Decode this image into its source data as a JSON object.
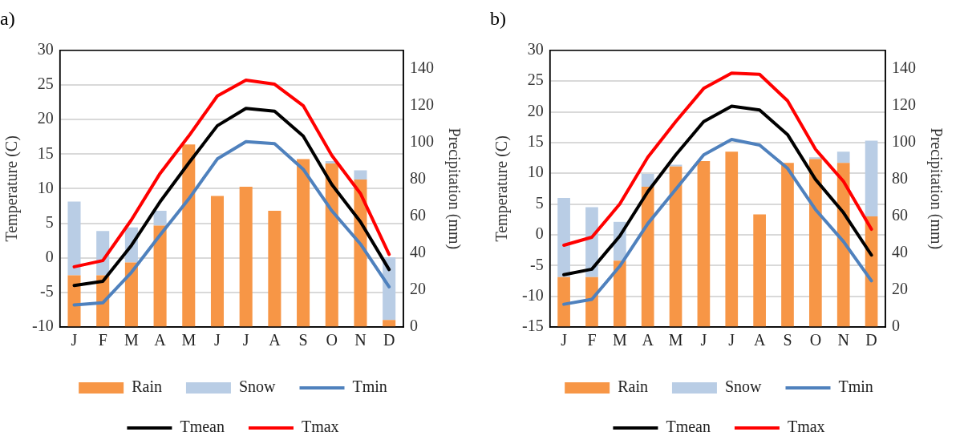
{
  "chart_data": [
    {
      "type": "bar",
      "title": "a)",
      "ylabel": "Temperature (C)",
      "y2label": "Precipitation (mm)",
      "categories": [
        "J",
        "F",
        "M",
        "A",
        "M",
        "J",
        "J",
        "A",
        "S",
        "O",
        "N",
        "D"
      ],
      "stacked": true,
      "grid": "y",
      "legend": "bottom",
      "marker": "none",
      "ylim": [
        -10,
        30
      ],
      "yticks": [
        -10,
        -5,
        0,
        5,
        10,
        15,
        20,
        25,
        30
      ],
      "y2lim": [
        0,
        150
      ],
      "y2ticks": [
        0,
        20,
        40,
        60,
        80,
        100,
        120,
        140
      ],
      "series": [
        {
          "name": "Rain",
          "axis": "y2",
          "color": "#f79646",
          "values": [
            28,
            28,
            35,
            55,
            99,
            71,
            76,
            63,
            91,
            88.6,
            80,
            3.8
          ]
        },
        {
          "name": "Snow",
          "axis": "y2",
          "color": "#b9cde5",
          "values": [
            40,
            24,
            19,
            8,
            0,
            0,
            0,
            0,
            0,
            1.4,
            5,
            34
          ]
        },
        {
          "name": "Tmin",
          "type": "line",
          "axis": "y",
          "color": "#4f81bd",
          "values": [
            -6.8,
            -6.5,
            -2.1,
            3.3,
            8.5,
            14.3,
            16.8,
            16.5,
            12.8,
            6.8,
            2.0,
            -4.2
          ]
        },
        {
          "name": "Tmean",
          "type": "line",
          "axis": "y",
          "color": "#000000",
          "values": [
            -4.0,
            -3.4,
            1.8,
            8.1,
            13.7,
            19.1,
            21.6,
            21.2,
            17.6,
            10.6,
            5.2,
            -1.7
          ]
        },
        {
          "name": "Tmax",
          "type": "line",
          "axis": "y",
          "color": "#ff0000",
          "values": [
            -1.3,
            -0.4,
            5.5,
            12.2,
            17.6,
            23.4,
            25.7,
            25.1,
            22.0,
            14.8,
            9.3,
            0.5
          ]
        }
      ]
    },
    {
      "type": "bar",
      "title": "b)",
      "ylabel": "Temperature (C)",
      "y2label": "Precipitation (mm)",
      "categories": [
        "J",
        "F",
        "M",
        "A",
        "M",
        "J",
        "J",
        "A",
        "S",
        "O",
        "N",
        "D"
      ],
      "stacked": true,
      "grid": "y",
      "legend": "bottom",
      "marker": "none",
      "ylim": [
        -15,
        30
      ],
      "yticks": [
        -15,
        -10,
        -5,
        0,
        5,
        10,
        15,
        20,
        25,
        30
      ],
      "y2lim": [
        0,
        150
      ],
      "y2ticks": [
        0,
        20,
        40,
        60,
        80,
        100,
        120,
        140
      ],
      "series": [
        {
          "name": "Rain",
          "axis": "y2",
          "color": "#f79646",
          "values": [
            27,
            27,
            36,
            76,
            87,
            90,
            95,
            61,
            89,
            91,
            89,
            60
          ]
        },
        {
          "name": "Snow",
          "axis": "y2",
          "color": "#b9cde5",
          "values": [
            43,
            38,
            21,
            7,
            1,
            0,
            0,
            0,
            0,
            1,
            6,
            41
          ]
        },
        {
          "name": "Tmin",
          "type": "line",
          "axis": "y",
          "color": "#4f81bd",
          "values": [
            -11.3,
            -10.5,
            -5.1,
            1.8,
            7.4,
            13.0,
            15.5,
            14.6,
            10.8,
            4.1,
            -1.1,
            -7.5
          ]
        },
        {
          "name": "Tmean",
          "type": "line",
          "axis": "y",
          "color": "#000000",
          "values": [
            -6.5,
            -5.6,
            -0.2,
            7.0,
            13.0,
            18.4,
            20.9,
            20.3,
            16.3,
            9.0,
            3.6,
            -3.3
          ]
        },
        {
          "name": "Tmax",
          "type": "line",
          "axis": "y",
          "color": "#ff0000",
          "values": [
            -1.7,
            -0.4,
            5.0,
            12.6,
            18.4,
            23.8,
            26.3,
            26.1,
            21.8,
            13.9,
            8.7,
            0.9
          ]
        }
      ]
    }
  ]
}
